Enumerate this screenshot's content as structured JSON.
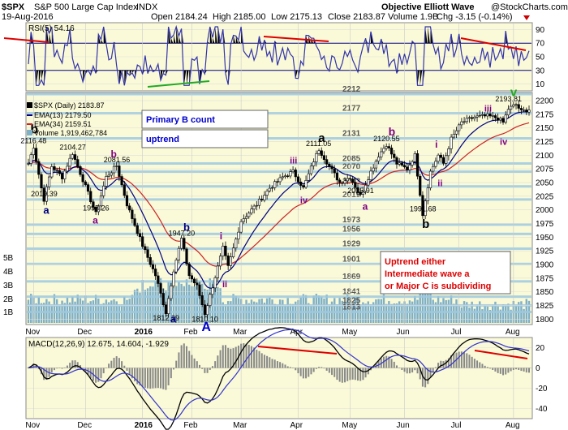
{
  "header": {
    "symbol": "$SPX",
    "name": "S&P 500 Large Cap Index",
    "exchange": "INDX",
    "date": "19-Aug-2016",
    "open": "Open 2184.24",
    "high": "High 2185.00",
    "low": "Low 2175.13",
    "close": "Close 2183.87",
    "volume": "Volume 1.9B",
    "chg": "Chg -3.15 (-0.14%)",
    "watermark": "Objective Elliott Wave",
    "copyright": "@StockCharts.com"
  },
  "rsi": {
    "label": "RSI(5) 54.16",
    "ticks": [
      10,
      30,
      50,
      70,
      90
    ],
    "levels": [
      30,
      70
    ],
    "series_color": "#3333aa",
    "fill_color": "#000000"
  },
  "price": {
    "legend": {
      "symbol": "$SPX (Daily) 2183.87",
      "ema13": "EMA(13) 2179.50",
      "ema34": "EMA(34) 2159.51",
      "volume": "Volume 1,919,462,784"
    },
    "ticks": [
      1800,
      1825,
      1850,
      1875,
      1900,
      1925,
      1950,
      1975,
      2000,
      2025,
      2050,
      2075,
      2100,
      2125,
      2150,
      2175,
      2200
    ],
    "ylim": [
      1790,
      2215
    ],
    "volume_ticks": [
      "1B",
      "2B",
      "3B",
      "4B",
      "5B"
    ],
    "levels": [
      {
        "label": "2212",
        "value": 2212
      },
      {
        "label": "2177",
        "value": 2177
      },
      {
        "label": "2131",
        "value": 2131
      },
      {
        "label": "2085",
        "value": 2085
      },
      {
        "label": "2070",
        "value": 2070
      },
      {
        "label": "2043",
        "value": 2043
      },
      {
        "label": "2019",
        "value": 2019
      },
      {
        "label": "1973",
        "value": 1973
      },
      {
        "label": "1956",
        "value": 1956
      },
      {
        "label": "1929",
        "value": 1929
      },
      {
        "label": "1901",
        "value": 1901
      },
      {
        "label": "1869",
        "value": 1869
      },
      {
        "label": "1841",
        "value": 1841
      },
      {
        "label": "1825",
        "value": 1825
      },
      {
        "label": "1813",
        "value": 1813
      }
    ],
    "price_labels": [
      {
        "text": "2116.48",
        "x": 2,
        "y": 2116
      },
      {
        "text": "2019.39",
        "x": 6,
        "y": 2019
      },
      {
        "text": "2104.27",
        "x": 17,
        "y": 2104
      },
      {
        "text": "1993.26",
        "x": 26,
        "y": 1993
      },
      {
        "text": "2081.56",
        "x": 34,
        "y": 2081
      },
      {
        "text": "1812.29",
        "x": 53,
        "y": 1812
      },
      {
        "text": "1947.20",
        "x": 59,
        "y": 1947
      },
      {
        "text": "1810.10",
        "x": 68,
        "y": 1810
      },
      {
        "text": "2111.05",
        "x": 112,
        "y": 2111
      },
      {
        "text": "2025.91",
        "x": 128,
        "y": 2025
      },
      {
        "text": "2120.55",
        "x": 138,
        "y": 2120
      },
      {
        "text": "1991.68",
        "x": 152,
        "y": 1991
      },
      {
        "text": "2193.81",
        "x": 185,
        "y": 2193
      }
    ],
    "wave_labels": [
      {
        "text": "b",
        "x": 2,
        "y": 2140,
        "color": "#000000",
        "size": 16
      },
      {
        "text": "a",
        "x": 7,
        "y": 1993,
        "color": "#000080",
        "size": 13
      },
      {
        "text": "b",
        "x": 33,
        "y": 2096,
        "color": "#800080",
        "size": 12
      },
      {
        "text": "a",
        "x": 26,
        "y": 1975,
        "color": "#800080",
        "size": 12
      },
      {
        "text": "b",
        "x": 61,
        "y": 1962,
        "color": "#000080",
        "size": 13
      },
      {
        "text": "a",
        "x": 56,
        "y": 1794,
        "color": "#000080",
        "size": 13
      },
      {
        "text": "A",
        "x": 68,
        "y": 1778,
        "color": "#0000cc",
        "size": 16
      },
      {
        "text": "i",
        "x": 75,
        "y": 1946,
        "color": "#800080",
        "size": 12
      },
      {
        "text": "ii",
        "x": 76,
        "y": 1858,
        "color": "#800080",
        "size": 11
      },
      {
        "text": "iii",
        "x": 102,
        "y": 2085,
        "color": "#800080",
        "size": 11
      },
      {
        "text": "iv",
        "x": 106,
        "y": 2012,
        "color": "#800080",
        "size": 11
      },
      {
        "text": "a",
        "x": 113,
        "y": 2124,
        "color": "#000000",
        "size": 15
      },
      {
        "text": "a",
        "x": 130,
        "y": 2000,
        "color": "#800080",
        "size": 12
      },
      {
        "text": "b",
        "x": 140,
        "y": 2136,
        "color": "#800080",
        "size": 14
      },
      {
        "text": "b",
        "x": 153,
        "y": 1967,
        "color": "#000000",
        "size": 15
      },
      {
        "text": "i",
        "x": 158,
        "y": 2114,
        "color": "#800080",
        "size": 12
      },
      {
        "text": "ii",
        "x": 159,
        "y": 2043,
        "color": "#800080",
        "size": 11
      },
      {
        "text": "iii",
        "x": 177,
        "y": 2180,
        "color": "#800080",
        "size": 11
      },
      {
        "text": "iv",
        "x": 183,
        "y": 2119,
        "color": "#800080",
        "size": 11
      },
      {
        "text": "v",
        "x": 187,
        "y": 2208,
        "color": "#22aa22",
        "size": 15
      }
    ],
    "boxes": [
      {
        "text": "Primary B count",
        "color": "#0000cc"
      },
      {
        "text": "uptrend",
        "color": "#0000cc"
      }
    ],
    "note": [
      "Uptrend either",
      "Intermediate wave a",
      "or Major C is subdividing"
    ]
  },
  "macd": {
    "label": "MACD(12,26,9) 12.675, 14.604, -1.929",
    "ticks": [
      -40,
      -20,
      0,
      20
    ],
    "ylim": [
      -50,
      30
    ]
  },
  "xaxis": {
    "months": [
      {
        "label": "Nov",
        "x": 2
      },
      {
        "label": "Dec",
        "x": 22
      },
      {
        "label": "2016",
        "x": 44
      },
      {
        "label": "Feb",
        "x": 63
      },
      {
        "label": "Mar",
        "x": 82
      },
      {
        "label": "Apr",
        "x": 104
      },
      {
        "label": "May",
        "x": 124
      },
      {
        "label": "Jun",
        "x": 145
      },
      {
        "label": "Jul",
        "x": 166
      },
      {
        "label": "Aug",
        "x": 187
      }
    ]
  },
  "chart_data": {
    "type": "line",
    "title": "$SPX S&P 500 Large Cap Index INDX",
    "pivots": [
      {
        "x": 0,
        "y": 2085
      },
      {
        "x": 2,
        "y": 2116
      },
      {
        "x": 5,
        "y": 2040
      },
      {
        "x": 6,
        "y": 2019
      },
      {
        "x": 9,
        "y": 2080
      },
      {
        "x": 13,
        "y": 2060
      },
      {
        "x": 17,
        "y": 2104
      },
      {
        "x": 21,
        "y": 2055
      },
      {
        "x": 26,
        "y": 1993
      },
      {
        "x": 30,
        "y": 2060
      },
      {
        "x": 34,
        "y": 2081
      },
      {
        "x": 38,
        "y": 2010
      },
      {
        "x": 44,
        "y": 1935
      },
      {
        "x": 49,
        "y": 1880
      },
      {
        "x": 53,
        "y": 1812
      },
      {
        "x": 56,
        "y": 1890
      },
      {
        "x": 59,
        "y": 1947
      },
      {
        "x": 62,
        "y": 1880
      },
      {
        "x": 65,
        "y": 1860
      },
      {
        "x": 68,
        "y": 1810
      },
      {
        "x": 71,
        "y": 1860
      },
      {
        "x": 75,
        "y": 1930
      },
      {
        "x": 77,
        "y": 1895
      },
      {
        "x": 82,
        "y": 1980
      },
      {
        "x": 88,
        "y": 2010
      },
      {
        "x": 93,
        "y": 2040
      },
      {
        "x": 98,
        "y": 2060
      },
      {
        "x": 102,
        "y": 2070
      },
      {
        "x": 106,
        "y": 2040
      },
      {
        "x": 110,
        "y": 2090
      },
      {
        "x": 112,
        "y": 2111
      },
      {
        "x": 116,
        "y": 2080
      },
      {
        "x": 120,
        "y": 2050
      },
      {
        "x": 124,
        "y": 2060
      },
      {
        "x": 128,
        "y": 2026
      },
      {
        "x": 132,
        "y": 2070
      },
      {
        "x": 135,
        "y": 2100
      },
      {
        "x": 138,
        "y": 2120
      },
      {
        "x": 142,
        "y": 2085
      },
      {
        "x": 146,
        "y": 2075
      },
      {
        "x": 149,
        "y": 2100
      },
      {
        "x": 151,
        "y": 2030
      },
      {
        "x": 152,
        "y": 1992
      },
      {
        "x": 155,
        "y": 2070
      },
      {
        "x": 158,
        "y": 2100
      },
      {
        "x": 160,
        "y": 2085
      },
      {
        "x": 163,
        "y": 2130
      },
      {
        "x": 167,
        "y": 2160
      },
      {
        "x": 172,
        "y": 2170
      },
      {
        "x": 177,
        "y": 2172
      },
      {
        "x": 181,
        "y": 2168
      },
      {
        "x": 183,
        "y": 2160
      },
      {
        "x": 185,
        "y": 2185
      },
      {
        "x": 188,
        "y": 2193
      },
      {
        "x": 190,
        "y": 2180
      },
      {
        "x": 193,
        "y": 2184
      }
    ],
    "ylim": [
      1790,
      2215
    ],
    "rsi_ylim": [
      0,
      100
    ],
    "macd_ylim": [
      -50,
      30
    ]
  }
}
